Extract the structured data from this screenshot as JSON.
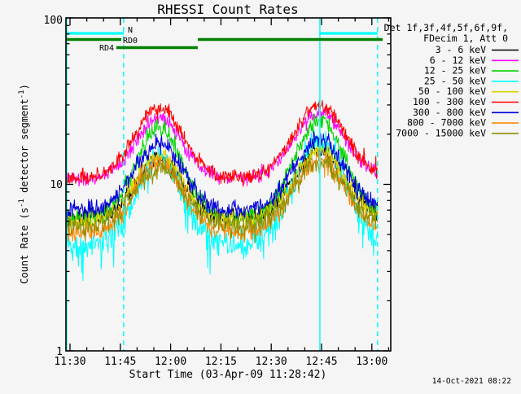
{
  "title": "RHESSI Count Rates",
  "timestamp": "14-Oct-2021 08:22",
  "axes": {
    "xlabel": "Start Time (03-Apr-09 11:28:42)",
    "ylabel_parts": {
      "p1": "Count Rate (s",
      "sup1": "-1",
      "p2": " detector segment",
      "sup2": "-1",
      "p3": ")"
    },
    "x_tick_labels": [
      "11:30",
      "11:45",
      "12:00",
      "12:15",
      "12:30",
      "12:45",
      "13:00"
    ],
    "x_tick_minutes": [
      1.3,
      16.3,
      31.3,
      46.3,
      61.3,
      76.3,
      91.3
    ],
    "x_minor_minutes": [
      6.3,
      11.3,
      21.3,
      26.3,
      36.3,
      41.3,
      51.3,
      56.3,
      66.3,
      71.3,
      81.3,
      86.3,
      96.3
    ],
    "y_tick_labels": [
      "100",
      "10",
      "1"
    ],
    "y_major_values": [
      1,
      10,
      100
    ],
    "y_minor_values": [
      2,
      3,
      4,
      5,
      6,
      7,
      8,
      9,
      20,
      30,
      40,
      50,
      60,
      70,
      80,
      90
    ]
  },
  "legend": {
    "header1": "Det 1f,3f,4f,5f,6f,9f,",
    "header2": "FDecim 1, Att 0"
  },
  "annotations": {
    "cyan": "#00ffff",
    "green": "#008000",
    "night_label": "N",
    "rd0_label": "RD0",
    "rd4_label": "RD4",
    "night_bars_min": [
      [
        0,
        17.3
      ],
      [
        75.8,
        93.0
      ]
    ],
    "rd0_bars_min": [
      [
        0,
        16.6
      ],
      [
        39.4,
        94.5
      ]
    ],
    "rd4_bars_min": [
      [
        15.1,
        39.4
      ]
    ],
    "vlines": [
      {
        "t": 0.0,
        "style": "solid"
      },
      {
        "t": 17.3,
        "style": "dashed"
      },
      {
        "t": 75.8,
        "style": "solid"
      },
      {
        "t": 93.0,
        "style": "dashed"
      }
    ]
  },
  "chart_data": {
    "type": "line",
    "title": "RHESSI Count Rates",
    "xlabel": "Start Time (03-Apr-09 11:28:42)",
    "ylabel": "Count Rate (s-1 detector segment-1)",
    "x_axis": {
      "start": "11:28:42",
      "end": "13:03",
      "duration_min": 93.0,
      "tick_labels": [
        "11:30",
        "11:45",
        "12:00",
        "12:15",
        "12:30",
        "12:45",
        "13:00"
      ]
    },
    "y_axis": {
      "scale": "log",
      "range": [
        1,
        100
      ]
    },
    "bump_centers_min": [
      27.8,
      75.8
    ],
    "bump_sigma_min": [
      7.0,
      7.5
    ],
    "series": [
      {
        "label": "3 - 6 keV",
        "color": "#000000",
        "quiet": 6.3,
        "peak1": 14,
        "peak2": 16,
        "noise": 0.05,
        "seed": 101,
        "keypoints": [
          [
            "11:30",
            6.3
          ],
          [
            "11:57",
            14
          ],
          [
            "12:20",
            6.3
          ],
          [
            "12:45",
            16
          ],
          [
            "13:00",
            7.0
          ]
        ]
      },
      {
        "label": "6 - 12 keV",
        "color": "#ff00ff",
        "quiet": 10.8,
        "peak1": 25,
        "peak2": 27,
        "noise": 0.035,
        "seed": 102,
        "keypoints": [
          [
            "11:30",
            10.8
          ],
          [
            "11:57",
            25
          ],
          [
            "12:20",
            10.8
          ],
          [
            "12:45",
            27
          ],
          [
            "13:00",
            12.0
          ]
        ]
      },
      {
        "label": "12 - 25 keV",
        "color": "#00d400",
        "quiet": 6.2,
        "peak1": 22,
        "peak2": 24.5,
        "noise": 0.045,
        "seed": 103,
        "keypoints": [
          [
            "11:30",
            6.2
          ],
          [
            "11:57",
            22
          ],
          [
            "12:20",
            6.2
          ],
          [
            "12:45",
            24.5
          ],
          [
            "13:00",
            8.0
          ]
        ]
      },
      {
        "label": "25 - 50 keV",
        "color": "#00ffff",
        "quiet": 4.3,
        "peak1": 14,
        "peak2": 19,
        "noise": 0.07,
        "seed": 104,
        "spiky": true,
        "keypoints": [
          [
            "11:30",
            4.3
          ],
          [
            "11:57",
            14
          ],
          [
            "12:20",
            4.3
          ],
          [
            "12:45",
            19
          ],
          [
            "13:00",
            5.0
          ]
        ]
      },
      {
        "label": "50 - 100 keV",
        "color": "#d6d600",
        "quiet": 6.0,
        "peak1": 15,
        "peak2": 16,
        "noise": 0.04,
        "seed": 105,
        "keypoints": [
          [
            "11:30",
            6.0
          ],
          [
            "11:57",
            15
          ],
          [
            "12:20",
            6.0
          ],
          [
            "12:45",
            16
          ],
          [
            "13:00",
            6.8
          ]
        ]
      },
      {
        "label": "100 - 300 keV",
        "color": "#ff0000",
        "quiet": 11.0,
        "peak1": 29,
        "peak2": 30,
        "noise": 0.035,
        "seed": 106,
        "keypoints": [
          [
            "11:30",
            11.0
          ],
          [
            "11:57",
            29
          ],
          [
            "12:20",
            11.3
          ],
          [
            "12:45",
            30
          ],
          [
            "13:00",
            12.6
          ]
        ]
      },
      {
        "label": "300 - 800 keV",
        "color": "#0000dd",
        "quiet": 7.0,
        "peak1": 17.5,
        "peak2": 18.5,
        "noise": 0.045,
        "seed": 107,
        "keypoints": [
          [
            "11:30",
            7.0
          ],
          [
            "11:57",
            17.5
          ],
          [
            "12:20",
            7.0
          ],
          [
            "12:45",
            18.5
          ],
          [
            "13:00",
            8.0
          ]
        ]
      },
      {
        "label": "800 - 7000 keV",
        "color": "#ff8800",
        "quiet": 5.1,
        "peak1": 13.5,
        "peak2": 14,
        "noise": 0.05,
        "seed": 108,
        "keypoints": [
          [
            "11:30",
            5.1
          ],
          [
            "11:57",
            13.5
          ],
          [
            "12:20",
            5.1
          ],
          [
            "12:45",
            14
          ],
          [
            "13:00",
            6.0
          ]
        ]
      },
      {
        "label": "7000 - 15000 keV",
        "color": "#8f8f00",
        "quiet": 5.6,
        "peak1": 12.5,
        "peak2": 13.5,
        "noise": 0.055,
        "seed": 109,
        "keypoints": [
          [
            "11:30",
            5.6
          ],
          [
            "11:57",
            12.5
          ],
          [
            "12:20",
            5.6
          ],
          [
            "12:45",
            13.5
          ],
          [
            "13:00",
            6.2
          ]
        ]
      }
    ]
  }
}
